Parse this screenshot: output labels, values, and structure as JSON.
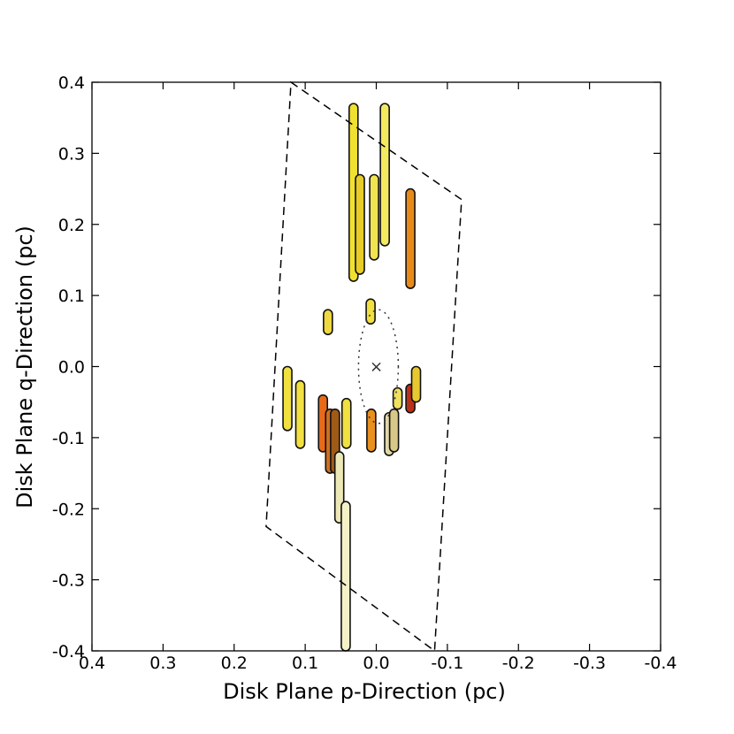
{
  "chart_data": {
    "type": "scatter",
    "title": "",
    "xlabel": "Disk Plane p-Direction (pc)",
    "ylabel": "Disk Plane q-Direction (pc)",
    "xlim": [
      0.4,
      -0.4
    ],
    "ylim": [
      -0.4,
      0.4
    ],
    "x_ticks": [
      "0.4",
      "0.3",
      "0.2",
      "0.1",
      "0.0",
      "-0.1",
      "-0.2",
      "-0.3",
      "-0.4"
    ],
    "y_ticks": [
      "0.4",
      "0.3",
      "0.2",
      "0.1",
      "0.0",
      "-0.1",
      "-0.2",
      "-0.3",
      "-0.4"
    ],
    "grid": false,
    "center_marker": {
      "label": "×",
      "x": 0.0,
      "y": 0.0
    },
    "dashed_outline": [
      [
        0.12,
        0.4
      ],
      [
        -0.12,
        0.235
      ],
      [
        -0.082,
        -0.4
      ],
      [
        0.155,
        -0.225
      ]
    ],
    "dotted_ellipse": {
      "cx": -0.003,
      "cy": 0.0,
      "rx": 0.028,
      "ry": 0.08
    },
    "features": [
      {
        "x": 0.032,
        "ymin": 0.12,
        "ymax": 0.37,
        "color": "#f0e030"
      },
      {
        "x": 0.023,
        "ymin": 0.13,
        "ymax": 0.27,
        "color": "#e8cc28"
      },
      {
        "x": 0.003,
        "ymin": 0.15,
        "ymax": 0.27,
        "color": "#f0e450"
      },
      {
        "x": -0.012,
        "ymin": 0.17,
        "ymax": 0.37,
        "color": "#f4ea60"
      },
      {
        "x": -0.048,
        "ymin": 0.11,
        "ymax": 0.25,
        "color": "#e88a18"
      },
      {
        "x": 0.068,
        "ymin": 0.045,
        "ymax": 0.08,
        "color": "#f0d840"
      },
      {
        "x": 0.008,
        "ymin": 0.06,
        "ymax": 0.095,
        "color": "#f2e040"
      },
      {
        "x": 0.125,
        "ymin": -0.09,
        "ymax": 0.0,
        "color": "#f0e040"
      },
      {
        "x": 0.107,
        "ymin": -0.115,
        "ymax": -0.02,
        "color": "#f2e040"
      },
      {
        "x": 0.075,
        "ymin": -0.12,
        "ymax": -0.04,
        "color": "#e86a18"
      },
      {
        "x": 0.065,
        "ymin": -0.15,
        "ymax": -0.06,
        "color": "#d07020"
      },
      {
        "x": 0.058,
        "ymin": -0.15,
        "ymax": -0.06,
        "color": "#a05a18"
      },
      {
        "x": 0.052,
        "ymin": -0.22,
        "ymax": -0.12,
        "color": "#ece8b8"
      },
      {
        "x": 0.042,
        "ymin": -0.115,
        "ymax": -0.045,
        "color": "#f0e040"
      },
      {
        "x": 0.043,
        "ymin": -0.4,
        "ymax": -0.19,
        "color": "#f6f2c8"
      },
      {
        "x": 0.007,
        "ymin": -0.12,
        "ymax": -0.06,
        "color": "#e89020"
      },
      {
        "x": -0.018,
        "ymin": -0.125,
        "ymax": -0.065,
        "color": "#e0d8a8"
      },
      {
        "x": -0.025,
        "ymin": -0.12,
        "ymax": -0.06,
        "color": "#d8c888"
      },
      {
        "x": -0.03,
        "ymin": -0.06,
        "ymax": -0.03,
        "color": "#f0e060"
      },
      {
        "x": -0.048,
        "ymin": -0.065,
        "ymax": -0.025,
        "color": "#b83018"
      },
      {
        "x": -0.056,
        "ymin": -0.05,
        "ymax": -0.0,
        "color": "#e8c830"
      }
    ]
  }
}
